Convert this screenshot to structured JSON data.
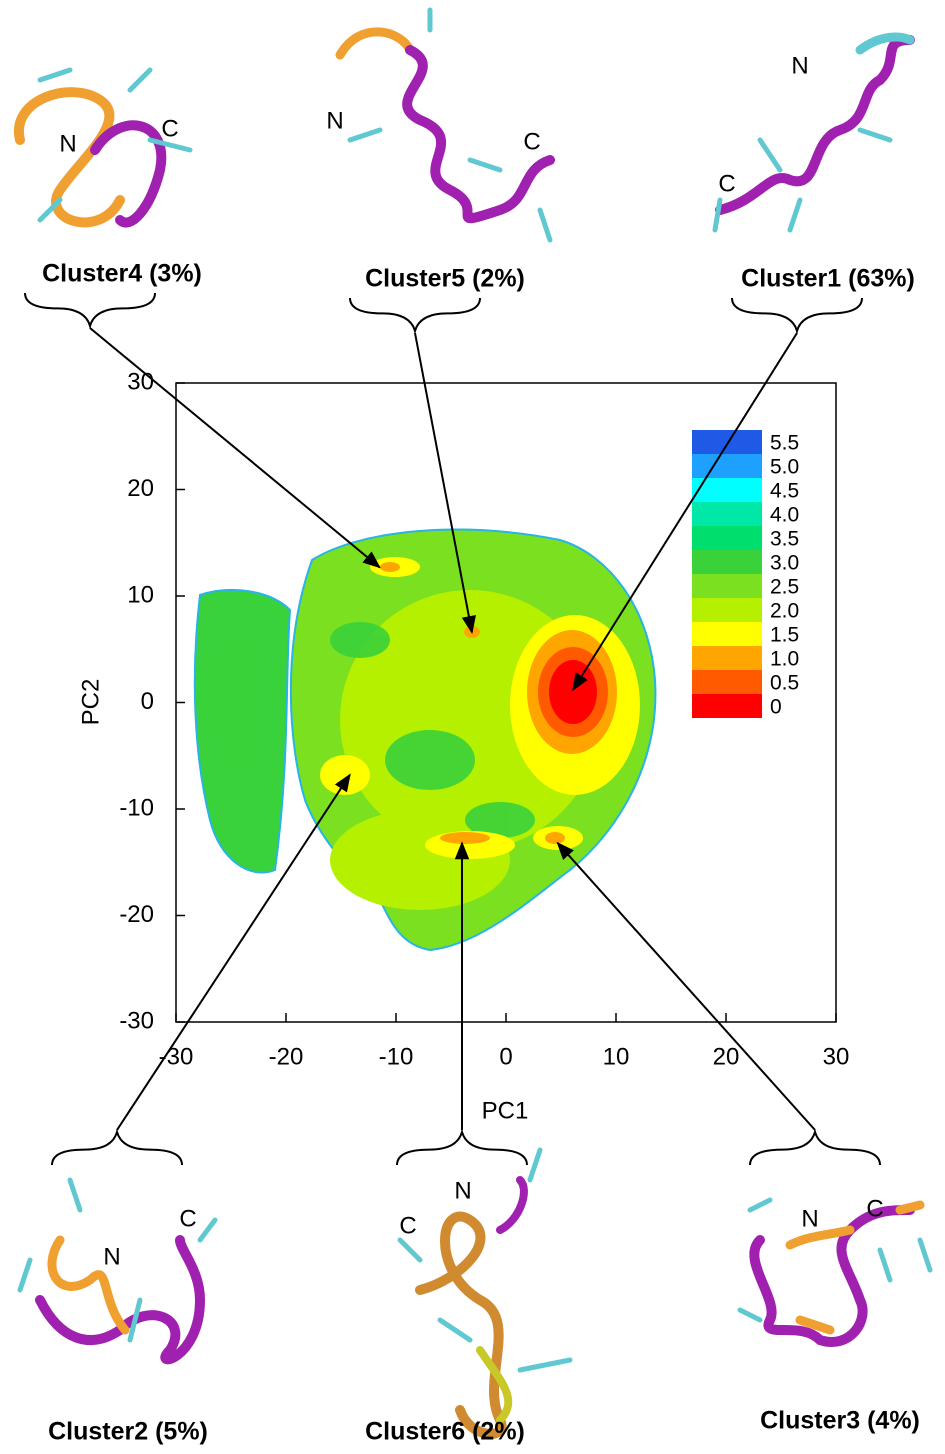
{
  "chart_data": {
    "type": "contour",
    "xlabel": "PC1",
    "ylabel": "PC2",
    "xlim": [
      -30,
      30
    ],
    "ylim": [
      -30,
      30
    ],
    "xticks": [
      -30,
      -20,
      -10,
      0,
      10,
      20,
      30
    ],
    "yticks": [
      -30,
      -20,
      -10,
      0,
      10,
      20,
      30
    ],
    "colorbar": {
      "levels": [
        0,
        0.5,
        {
          "value": 1,
          "label": "1.0"
        },
        1.5,
        {
          "value": 2,
          "label": "2.0"
        },
        2.5,
        {
          "value": 3,
          "label": "3.0"
        },
        3.5,
        {
          "value": 4,
          "label": "4.0"
        },
        4.5,
        {
          "value": 5,
          "label": "5.0"
        },
        5.5
      ],
      "colors": [
        "#ff0000",
        "#ff5a00",
        "#ffa500",
        "#ffff00",
        "#b4f000",
        "#7ae020",
        "#3ad23a",
        "#00de6e",
        "#00e8a8",
        "#00ffff",
        "#1ea0ff",
        "#1e5ae6"
      ]
    },
    "clusters": [
      {
        "label": "Cluster4 (3%)",
        "n": "N",
        "c": "C",
        "x": -11.5,
        "y": 12.7
      },
      {
        "label": "Cluster5  (2%)",
        "n": "N",
        "c": "C",
        "x": -3.1,
        "y": 6.6
      },
      {
        "label": "Cluster1 (63%)",
        "n": "N",
        "c": "C",
        "x": 6.1,
        "y": 1.2
      },
      {
        "label": "Cluster2  (5%)",
        "n": "N",
        "c": "C",
        "x": -14.2,
        "y": -6.8
      },
      {
        "label": "Cluster6  (2%)",
        "n": "N",
        "c": "C",
        "x": -4,
        "y": -13.2
      },
      {
        "label": "Cluster3 (4%)",
        "n": "N",
        "c": "C",
        "x": 4.7,
        "y": -13.2
      }
    ]
  }
}
